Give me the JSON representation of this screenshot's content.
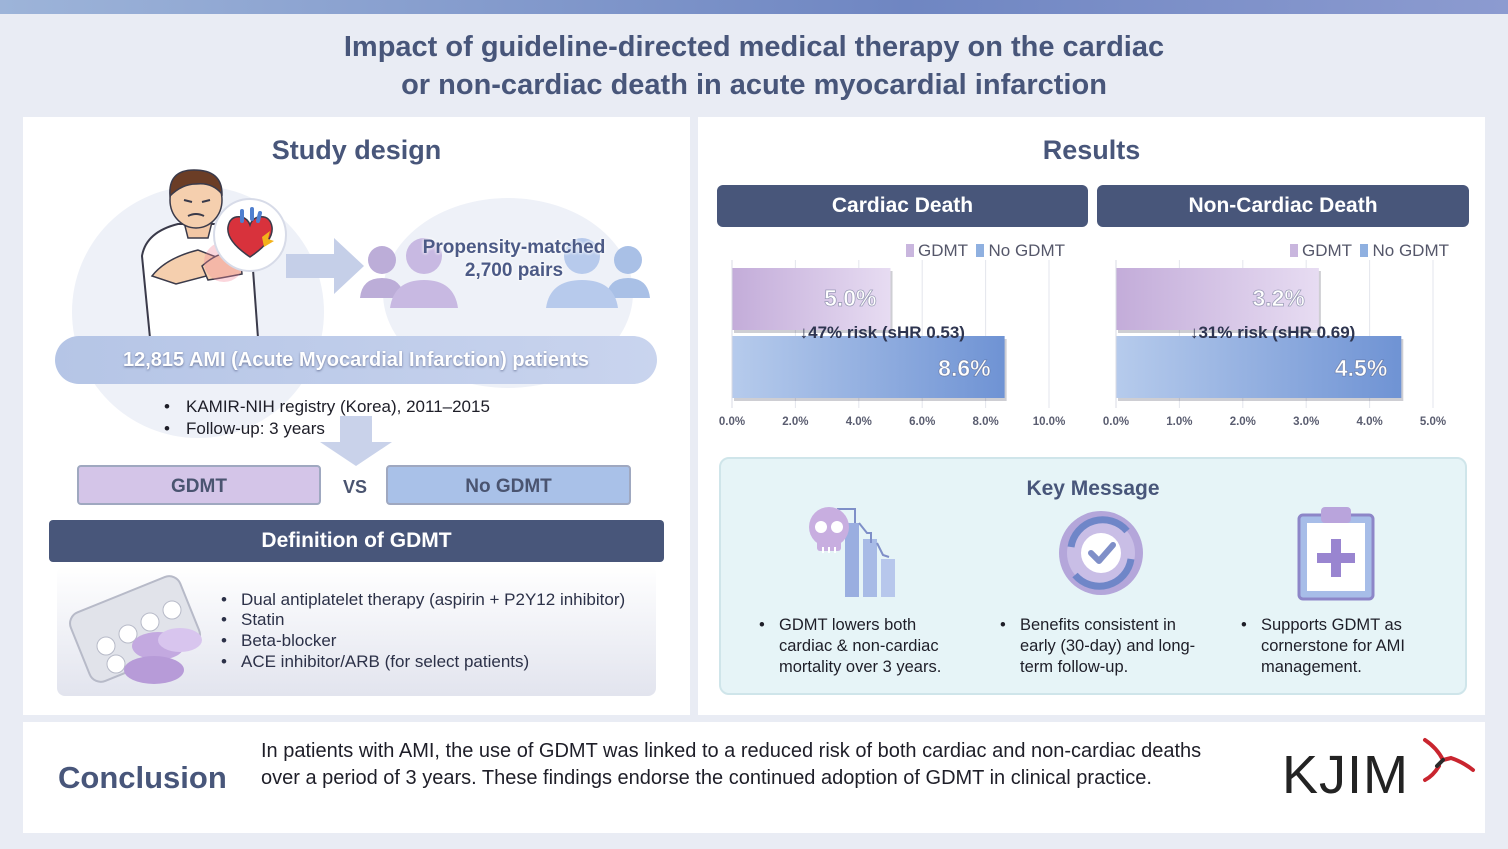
{
  "title": {
    "line1": "Impact of guideline-directed medical therapy on the cardiac",
    "line2": "or non-cardiac death in acute myocardial infarction"
  },
  "study": {
    "heading": "Study design",
    "matched_line1": "Propensity-matched",
    "matched_line2": "2,700 pairs",
    "patients": "12,815 AMI (Acute Myocardial Infarction) patients",
    "bullets": [
      "KAMIR-NIH registry (Korea), 2011–2015",
      "Follow-up: 3 years"
    ],
    "group_a": "GDMT",
    "vs": "VS",
    "group_b": "No GDMT",
    "definition_title": "Definition of GDMT",
    "definition_items": [
      "Dual antiplatelet therapy (aspirin + P2Y12 inhibitor)",
      "Statin",
      "Beta-blocker",
      "ACE inhibitor/ARB (for select patients)"
    ]
  },
  "results": {
    "heading": "Results",
    "cardiac_header": "Cardiac Death",
    "noncardiac_header": "Non-Cardiac Death",
    "legend_gdmt": "GDMT",
    "legend_nogdmt": "No GDMT"
  },
  "chart_data": [
    {
      "type": "bar",
      "orientation": "horizontal",
      "title": "Cardiac Death",
      "series": [
        {
          "name": "GDMT",
          "values": [
            5.0
          ],
          "label": "5.0%"
        },
        {
          "name": "No GDMT",
          "values": [
            8.6
          ],
          "label": "8.6%"
        }
      ],
      "annotation": "↓47% risk (sHR 0.53)",
      "xlim": [
        0,
        10
      ],
      "ticks": [
        "0.0%",
        "2.0%",
        "4.0%",
        "6.0%",
        "8.0%",
        "10.0%"
      ],
      "legend": "top-right"
    },
    {
      "type": "bar",
      "orientation": "horizontal",
      "title": "Non-Cardiac Death",
      "series": [
        {
          "name": "GDMT",
          "values": [
            3.2
          ],
          "label": "3.2%"
        },
        {
          "name": "No GDMT",
          "values": [
            4.5
          ],
          "label": "4.5%"
        }
      ],
      "annotation": "↓31% risk (sHR 0.69)",
      "xlim": [
        0,
        5
      ],
      "ticks": [
        "0.0%",
        "1.0%",
        "2.0%",
        "3.0%",
        "4.0%",
        "5.0%"
      ],
      "legend": "top-right"
    }
  ],
  "key_message": {
    "title": "Key Message",
    "items": [
      "GDMT lowers both cardiac & non-cardiac mortality over 3 years.",
      "Benefits consistent in early (30-day) and long-term follow-up.",
      "Supports GDMT as cornerstone for AMI management."
    ]
  },
  "conclusion": {
    "title": "Conclusion",
    "text": "In patients with AMI, the use of GDMT was linked to a reduced risk of both cardiac and non-cardiac deaths over a period of 3 years. These findings endorse the continued adoption of GDMT in clinical practice.",
    "logo": "KJIM"
  },
  "colors": {
    "navy": "#48567a",
    "gdmt": "#c9b6de",
    "nogdmt": "#8fb0e0",
    "key_bg": "#e6f4f7"
  }
}
